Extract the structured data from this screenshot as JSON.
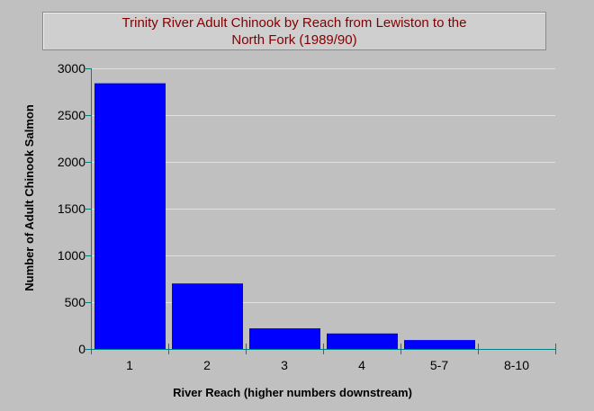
{
  "colors": {
    "background": "#c0c0c0",
    "plot_background": "#c0c0c0",
    "gridline": "#e0e0e0",
    "bar": "#0000ff",
    "axis": "#008080",
    "title": "#800000"
  },
  "chart_data": {
    "type": "bar",
    "title_lines": [
      "Trinity River Adult Chinook by Reach from Lewiston to the",
      "North Fork (1989/90)"
    ],
    "xlabel": "River Reach (higher numbers downstream)",
    "ylabel": "Number of Adult Chinook Salmon",
    "categories": [
      "1",
      "2",
      "3",
      "4",
      "5-7",
      "8-10"
    ],
    "values": [
      2840,
      700,
      220,
      165,
      95,
      0
    ],
    "ylim": [
      0,
      3000
    ],
    "yticks": [
      0,
      500,
      1000,
      1500,
      2000,
      2500,
      3000
    ],
    "grid": true,
    "legend": "none"
  }
}
